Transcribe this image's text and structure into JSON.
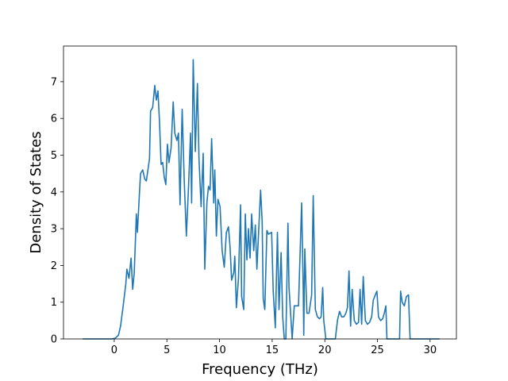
{
  "chart_data": {
    "type": "line",
    "x_label": "Frequency (THz)",
    "y_label": "Density of States",
    "xlim": [
      -4.82,
      32.5
    ],
    "ylim": [
      0,
      7.97
    ],
    "xticks": [
      0,
      5,
      10,
      15,
      20,
      25,
      30
    ],
    "yticks": [
      0,
      1,
      2,
      3,
      4,
      5,
      6,
      7
    ],
    "grid": false,
    "series": [
      {
        "color": "#1f77b4",
        "x": [
          -3,
          -0.2,
          0.1,
          0.4,
          0.6,
          0.85,
          1.1,
          1.2,
          1.4,
          1.6,
          1.75,
          1.9,
          2.1,
          2.2,
          2.4,
          2.5,
          2.7,
          2.9,
          3.05,
          3.2,
          3.35,
          3.45,
          3.65,
          3.85,
          4.0,
          4.15,
          4.3,
          4.45,
          4.6,
          4.75,
          4.9,
          5.05,
          5.2,
          5.4,
          5.6,
          5.75,
          5.95,
          6.1,
          6.25,
          6.45,
          6.65,
          6.85,
          7.05,
          7.25,
          7.35,
          7.5,
          7.7,
          7.9,
          8.05,
          8.25,
          8.45,
          8.6,
          8.8,
          8.95,
          9.1,
          9.25,
          9.45,
          9.55,
          9.7,
          9.85,
          10.05,
          10.25,
          10.45,
          10.65,
          10.85,
          11.0,
          11.15,
          11.35,
          11.45,
          11.6,
          11.8,
          12.0,
          12.1,
          12.3,
          12.45,
          12.6,
          12.75,
          12.9,
          13.05,
          13.25,
          13.4,
          13.55,
          13.9,
          14.05,
          14.15,
          14.3,
          14.5,
          14.65,
          14.95,
          15.1,
          15.3,
          15.5,
          15.65,
          15.85,
          16.0,
          16.15,
          16.3,
          16.5,
          16.6,
          16.75,
          16.9,
          17.1,
          17.3,
          17.5,
          17.8,
          17.95,
          18.0,
          18.1,
          18.3,
          18.5,
          18.65,
          18.75,
          18.9,
          19.1,
          19.3,
          19.5,
          19.65,
          19.8,
          19.9,
          20.1,
          21.0,
          21.2,
          21.4,
          21.6,
          21.8,
          22.0,
          22.15,
          22.3,
          22.45,
          22.6,
          22.8,
          23.0,
          23.2,
          23.35,
          23.5,
          23.65,
          23.85,
          24.05,
          24.25,
          24.45,
          24.6,
          24.8,
          24.95,
          25.1,
          25.3,
          25.5,
          25.65,
          25.8,
          25.9,
          27.1,
          27.2,
          27.35,
          27.55,
          27.75,
          27.95,
          28.1,
          30.9
        ],
        "values": [
          0,
          0,
          0.02,
          0.1,
          0.35,
          0.9,
          1.5,
          1.9,
          1.65,
          2.2,
          1.35,
          1.8,
          3.4,
          2.9,
          4.0,
          4.5,
          4.6,
          4.35,
          4.3,
          4.6,
          4.9,
          6.2,
          6.3,
          6.9,
          6.5,
          6.75,
          5.9,
          4.75,
          4.8,
          4.4,
          4.2,
          5.3,
          4.8,
          5.2,
          6.45,
          5.6,
          5.4,
          5.6,
          3.65,
          6.25,
          4.3,
          2.8,
          4.1,
          5.6,
          3.7,
          7.6,
          5.1,
          6.95,
          4.9,
          3.6,
          5.05,
          1.9,
          3.7,
          4.15,
          4.05,
          5.45,
          3.7,
          4.6,
          2.8,
          3.8,
          3.6,
          2.4,
          1.95,
          2.9,
          3.05,
          2.5,
          1.6,
          1.8,
          2.25,
          0.85,
          1.65,
          3.65,
          1.15,
          0.8,
          3.4,
          2.15,
          3.0,
          2.2,
          3.4,
          2.4,
          3.1,
          1.9,
          4.05,
          3.2,
          1.1,
          0.8,
          2.95,
          2.85,
          2.9,
          1.3,
          0.3,
          2.9,
          0.8,
          2.35,
          0.6,
          0,
          0,
          3.15,
          1.4,
          0.7,
          0,
          0.9,
          0.9,
          0.9,
          3.7,
          1.4,
          0.1,
          2.45,
          0.7,
          0.7,
          1.0,
          1.2,
          3.9,
          0.8,
          0.6,
          0.55,
          0.6,
          1.4,
          0.5,
          0,
          0,
          0.5,
          0.75,
          0.6,
          0.6,
          0.7,
          0.85,
          1.85,
          0.35,
          1.35,
          0.5,
          0.4,
          0.45,
          1.35,
          0.4,
          1.7,
          0.5,
          0.4,
          0.45,
          0.6,
          1.05,
          1.2,
          1.3,
          0.6,
          0.5,
          0.55,
          0.7,
          0.9,
          0,
          0,
          1.3,
          1.0,
          0.9,
          1.15,
          1.2,
          0,
          0
        ]
      }
    ]
  }
}
